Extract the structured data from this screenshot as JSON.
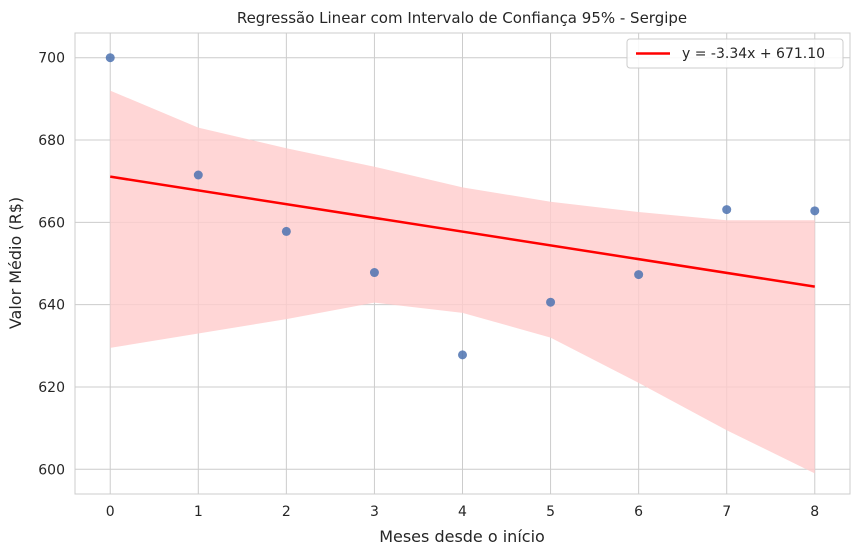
{
  "chart_data": {
    "type": "scatter",
    "title": "Regressão Linear com Intervalo de Confiança 95% - Sergipe",
    "xlabel": "Meses desde o início",
    "ylabel": "Valor Médio (R$)",
    "xlim": [
      -0.4,
      8.4
    ],
    "ylim": [
      594,
      706
    ],
    "x_ticks": [
      0,
      1,
      2,
      3,
      4,
      5,
      6,
      7,
      8
    ],
    "y_ticks": [
      600,
      620,
      640,
      660,
      680,
      700
    ],
    "grid": true,
    "legend_position": "top-right",
    "points": {
      "x": [
        0,
        1,
        2,
        3,
        4,
        5,
        6,
        7,
        8
      ],
      "y": [
        700.0,
        671.5,
        657.8,
        647.8,
        627.8,
        640.6,
        647.3,
        663.1,
        662.8
      ],
      "color": "#4c72b0"
    },
    "regression": {
      "label": "y = -3.34x + 671.10",
      "slope": -3.34,
      "intercept": 671.1,
      "color": "#ff0000"
    },
    "confidence_band": {
      "x": [
        0,
        1,
        2,
        3,
        4,
        5,
        6,
        7,
        8
      ],
      "upper": [
        692.0,
        683.0,
        678.0,
        673.5,
        668.5,
        665.0,
        662.5,
        660.5,
        660.5
      ],
      "lower": [
        629.5,
        633.0,
        636.5,
        640.5,
        638.0,
        632.0,
        621.0,
        609.5,
        599.0
      ],
      "color": "#ffcccc"
    }
  }
}
